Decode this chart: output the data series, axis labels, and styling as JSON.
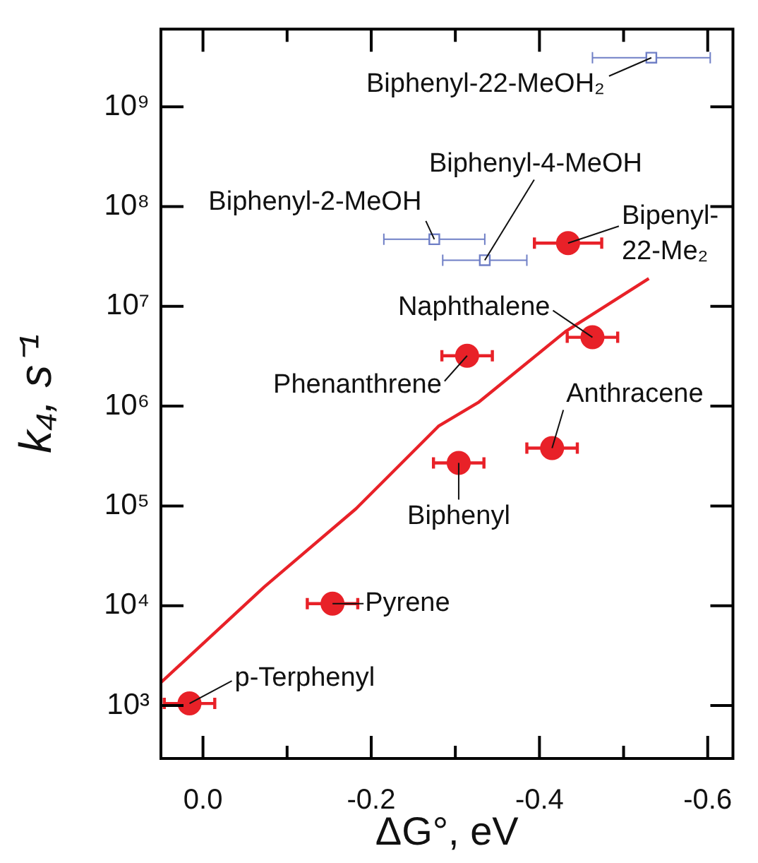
{
  "chart_data": {
    "type": "scatter",
    "xlabel": "ΔG°, eV",
    "ylabel": "k₄, s⁻¹",
    "log": true,
    "grid": false,
    "legend": false,
    "xlim": [
      0.05,
      -0.63
    ],
    "xticks": [
      {
        "value": 0,
        "label": "0.0"
      },
      {
        "value": -0.1,
        "label": null
      },
      {
        "value": -0.2,
        "label": "-0.2"
      },
      {
        "value": -0.3,
        "label": null
      },
      {
        "value": -0.4,
        "label": "-0.4"
      },
      {
        "value": -0.5,
        "label": null
      },
      {
        "value": -0.6,
        "label": "-0.6"
      }
    ],
    "ylim": [
      295,
      6000000000
    ],
    "yticks": [
      {
        "value": 1000,
        "label": "10³"
      },
      {
        "value": 10000,
        "label": "10⁴"
      },
      {
        "value": 100000,
        "label": "10⁵"
      },
      {
        "value": 1000000,
        "label": "10⁶"
      },
      {
        "value": 10000000,
        "label": "10⁷"
      },
      {
        "value": 100000000,
        "label": "10⁸"
      },
      {
        "value": 1000000000,
        "label": "10⁹"
      }
    ],
    "series": [
      {
        "type": "scatter",
        "color": "#e82128",
        "marker": "circle",
        "x": [
          0.016,
          -0.154,
          -0.304,
          -0.415,
          -0.314,
          -0.463,
          -0.434
        ],
        "values": [
          1050,
          10500,
          270000,
          380000,
          3200000,
          4900000,
          43000000
        ],
        "xerrors": [
          0.03,
          0.03,
          0.03,
          0.03,
          0.03,
          0.03,
          0.04
        ]
      },
      {
        "type": "scatter",
        "color": "#6f7fc6",
        "marker": "square",
        "x": [
          -0.533,
          -0.275,
          -0.335
        ],
        "values": [
          3100000000,
          47000000,
          29000000
        ],
        "xerrors": [
          0.07,
          0.06,
          0.05
        ]
      },
      {
        "type": "line",
        "color": "#e82128",
        "marker": "none",
        "line_style": "solid",
        "x": [
          0.05,
          -0.073,
          -0.182,
          -0.28,
          -0.328,
          -0.431,
          -0.53
        ],
        "values": [
          1700,
          15500,
          94000,
          630000,
          1100000,
          5600000,
          19000000
        ]
      }
    ],
    "annotations": [
      {
        "text": "p-Terphenyl",
        "x": 0.016,
        "y": 1050
      },
      {
        "text": "Pyrene",
        "x": -0.154,
        "y": 10500
      },
      {
        "text": "Biphenyl",
        "x": -0.304,
        "y": 270000
      },
      {
        "text": "Anthracene",
        "x": -0.415,
        "y": 380000
      },
      {
        "text": "Phenanthrene",
        "x": -0.314,
        "y": 3200000
      },
      {
        "text": "Naphthalene",
        "x": -0.463,
        "y": 4900000
      },
      {
        "text": "Bipenyl-\n22-Me₂",
        "x": -0.434,
        "y": 43000000
      },
      {
        "text": "Biphenyl-22-MeOH₂",
        "x": -0.533,
        "y": 3100000000
      },
      {
        "text": "Biphenyl-2-MeOH",
        "x": -0.275,
        "y": 47000000
      },
      {
        "text": "Biphenyl-4-MeOH",
        "x": -0.335,
        "y": 29000000
      }
    ]
  }
}
